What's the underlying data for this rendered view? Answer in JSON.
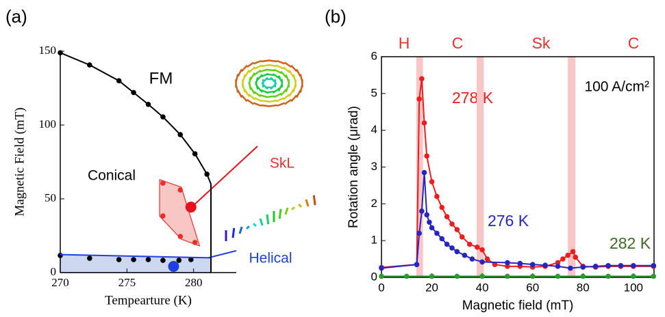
{
  "chart_data": [
    {
      "type": "scatter",
      "panel_label": "(a)",
      "x_label": "Tempearture (K)",
      "y_label": "Magnetic Field (mT)",
      "xlim": [
        270,
        283.2
      ],
      "ylim": [
        0,
        150
      ],
      "xticks": [
        270,
        275,
        280
      ],
      "yticks": [
        0,
        50,
        100,
        150
      ],
      "phase_labels": [
        "FM",
        "Conical",
        "SkL",
        "Helical"
      ],
      "series": [
        {
          "color": "#000000",
          "marker": true,
          "line": true,
          "x": [
            270,
            272.2,
            274.4,
            275.5,
            276.6,
            277.7,
            279,
            280.1,
            281
          ],
          "values": [
            149,
            140.7,
            130,
            122,
            114,
            105.5,
            93.5,
            80.5,
            66.7
          ]
        },
        {
          "color": "#000000",
          "marker": true,
          "line": false,
          "x": [
            270,
            272.2,
            274.4,
            275.5,
            276.6,
            277.7,
            278.9,
            279.8
          ],
          "values": [
            11.6,
            9.7,
            8.8,
            8.8,
            8.8,
            8.3,
            8.3,
            8.8
          ]
        },
        {
          "color": "#e8302a",
          "marker": true,
          "line": false,
          "fill": "#f8c6c4",
          "x": [
            277.7,
            279,
            280.1,
            279,
            277.7
          ],
          "values": [
            60.6,
            56,
            20.4,
            24.5,
            38.4
          ]
        },
        {
          "color": "#1f3fe0",
          "marker": false,
          "line": true,
          "fill": "#cdd8f0",
          "x": [
            270,
            281.3
          ],
          "values": [
            12.2,
            10
          ]
        },
        {
          "color": "#000000",
          "marker": false,
          "line": true,
          "x": [
            281,
            281.3,
            281.3
          ],
          "values": [
            66.7,
            60,
            0
          ]
        }
      ],
      "highlight_points": [
        {
          "x": 279.8,
          "value": 44.4,
          "color": "#e8101a"
        },
        {
          "x": 278.5,
          "value": 4.2,
          "color": "#1f3fe0"
        }
      ]
    },
    {
      "type": "line",
      "panel_label": "(b)",
      "x_label": "Magnetic field (mT)",
      "y_label": "Rotation angle (μrad)",
      "xlim": [
        0,
        108.2
      ],
      "ylim": [
        0,
        6
      ],
      "xticks": [
        0,
        20,
        40,
        60,
        80,
        100
      ],
      "yticks": [
        0,
        1,
        2,
        3,
        4,
        5,
        6
      ],
      "annotation": "100 A/cm²",
      "phase_labels": [
        "H",
        "C",
        "Sk",
        "C"
      ],
      "band_color": "#f8c6c6",
      "shaded_regions": [
        [
          13.8,
          16.5
        ],
        [
          37.8,
          40.6
        ],
        [
          74,
          77
        ]
      ],
      "series": [
        {
          "name": "278 K",
          "color": "#ee1c1c",
          "x": [
            0,
            14,
            15,
            16,
            17,
            18,
            20,
            22,
            24,
            26,
            28,
            30,
            32,
            35,
            38,
            40,
            42,
            45,
            50,
            55,
            60,
            65,
            70,
            72,
            74,
            76,
            77,
            80,
            85,
            90,
            95,
            100,
            108
          ],
          "values": [
            0.27,
            0.35,
            4.85,
            5.4,
            4.2,
            3.3,
            2.6,
            2.2,
            1.9,
            1.65,
            1.45,
            1.3,
            1.1,
            0.9,
            0.82,
            0.75,
            0.5,
            0.35,
            0.3,
            0.3,
            0.28,
            0.3,
            0.4,
            0.5,
            0.6,
            0.7,
            0.55,
            0.3,
            0.28,
            0.3,
            0.3,
            0.3,
            0.3
          ]
        },
        {
          "name": "276 K",
          "color": "#2525c0",
          "x": [
            0,
            14,
            15,
            16,
            17,
            18,
            19,
            20,
            22,
            24,
            26,
            28,
            30,
            33,
            36,
            40,
            50,
            55,
            60,
            65,
            70,
            75,
            80,
            85,
            90,
            95,
            100,
            108
          ],
          "values": [
            0.25,
            0.35,
            1.2,
            1.8,
            2.85,
            1.7,
            1.5,
            1.35,
            1.2,
            1.05,
            0.9,
            0.8,
            0.7,
            0.6,
            0.5,
            0.42,
            0.4,
            0.38,
            0.35,
            0.33,
            0.3,
            0.25,
            0.28,
            0.3,
            0.32,
            0.32,
            0.32,
            0.32
          ]
        },
        {
          "name": "282 K",
          "color": "#2e9a2e",
          "x": [
            0,
            10,
            20,
            30,
            40,
            50,
            60,
            70,
            80,
            90,
            100,
            108
          ],
          "values": [
            0.03,
            0.03,
            0.03,
            0.03,
            0.03,
            0.03,
            0.03,
            0.03,
            0.03,
            0.03,
            0.03,
            0.03
          ]
        }
      ]
    }
  ]
}
